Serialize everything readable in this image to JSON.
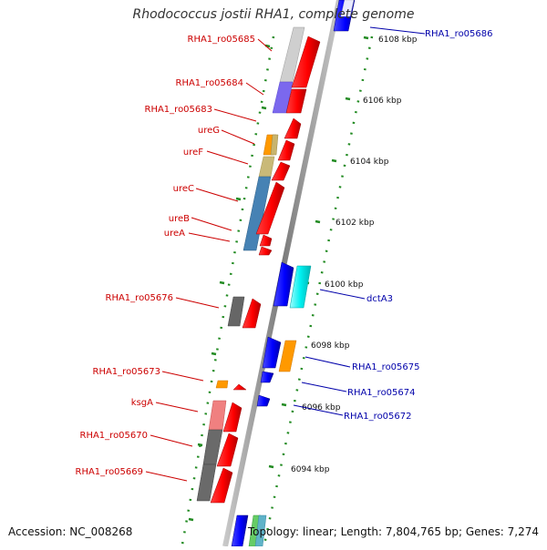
{
  "title": "Rhodococcus jostii RHA1, complete genome",
  "footer": {
    "accession": "Accession: NC_008268",
    "topology": "Topology: linear; Length: 7,804,765 bp; Genes: 7,274"
  },
  "axis": {
    "unit": "kbp",
    "ticks": [
      "6108 kbp",
      "6106 kbp",
      "6104 kbp",
      "6102 kbp",
      "6100 kbp",
      "6098 kbp",
      "6096 kbp",
      "6094 kbp"
    ]
  },
  "genes_left": [
    "RHA1_ro05685",
    "RHA1_ro05684",
    "RHA1_ro05683",
    "ureG",
    "ureF",
    "ureC",
    "ureB",
    "ureA",
    "RHA1_ro05676",
    "RHA1_ro05673",
    "ksgA",
    "RHA1_ro05670",
    "RHA1_ro05669"
  ],
  "genes_right": [
    "RHA1_ro05686",
    "dctA3",
    "RHA1_ro05675",
    "RHA1_ro05674",
    "RHA1_ro05672"
  ],
  "colors": {
    "left_label": "#cc0000",
    "right_label": "#0000aa",
    "forward_arrow": "#ff0000",
    "reverse_arrow": "#0000ff",
    "cyan_block": "#00eeee",
    "orange_block": "#ff9900",
    "backbone": "#999999",
    "tick": "#228b22"
  }
}
